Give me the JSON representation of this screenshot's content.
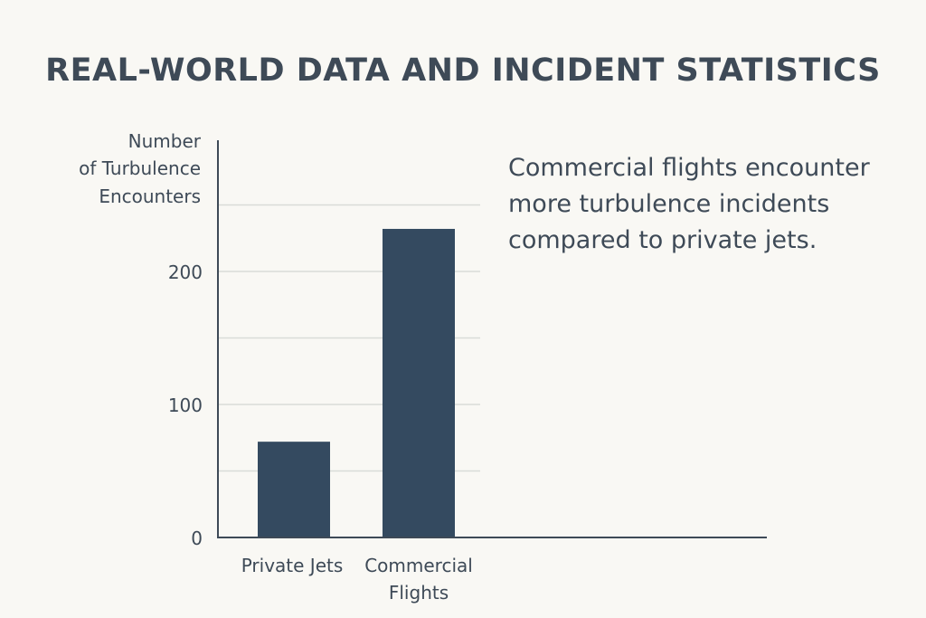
{
  "chart_data": {
    "type": "bar",
    "title": "REAL-WORLD DATA AND INCIDENT STATISTICS",
    "ylabel_lines": [
      "Number",
      "of Turbulence",
      "Encounters"
    ],
    "categories": [
      {
        "label": [
          "Private Jets"
        ]
      },
      {
        "label": [
          "Commercial",
          "Flights"
        ]
      }
    ],
    "values": [
      72,
      232
    ],
    "ylim": [
      0,
      250
    ],
    "yticks": [
      0,
      100,
      200
    ],
    "gridlines": [
      50,
      100,
      150,
      200,
      250
    ],
    "bar_color": "#344a60",
    "annotation": "Commercial flights encounter more turbulence incidents compared to private jets."
  }
}
